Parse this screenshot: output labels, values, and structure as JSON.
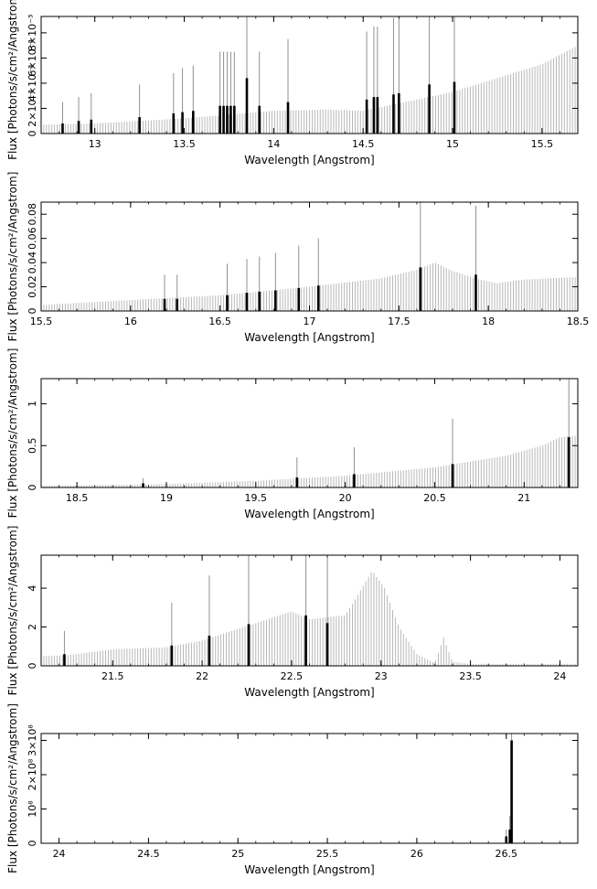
{
  "chart_data": [
    {
      "type": "bar",
      "xlabel": "Wavelength [Angstrom]",
      "ylabel": "Flux [Photons/s/cm²/Angstrom]",
      "xlim": [
        12.7,
        15.7
      ],
      "ylim": [
        0,
        0.0093
      ],
      "xticks": [
        13,
        13.5,
        14,
        14.5,
        15,
        15.5
      ],
      "xtick_labels": [
        "13",
        "13.5",
        "14",
        "14.5",
        "15",
        "15.5"
      ],
      "yticks": [
        0,
        0.002,
        0.004,
        0.006,
        0.008
      ],
      "ytick_labels": [
        "0",
        "2×10⁻³",
        "4×10⁻³",
        "6×10⁻³",
        "8×10⁻³"
      ],
      "continuum": [
        [
          12.7,
          0.0007
        ],
        [
          13.0,
          0.0008
        ],
        [
          13.5,
          0.0012
        ],
        [
          14.0,
          0.0018
        ],
        [
          14.3,
          0.0019
        ],
        [
          14.5,
          0.0018
        ],
        [
          15.0,
          0.0033
        ],
        [
          15.5,
          0.0055
        ],
        [
          15.7,
          0.007
        ]
      ],
      "lines": [
        {
          "x": 12.82,
          "y": 0.0008,
          "err": 0.0017
        },
        {
          "x": 12.91,
          "y": 0.001,
          "err": 0.0019
        },
        {
          "x": 12.98,
          "y": 0.0011,
          "err": 0.0021
        },
        {
          "x": 13.25,
          "y": 0.0013,
          "err": 0.0026
        },
        {
          "x": 13.44,
          "y": 0.0016,
          "err": 0.0032
        },
        {
          "x": 13.49,
          "y": 0.0017,
          "err": 0.0035
        },
        {
          "x": 13.55,
          "y": 0.0018,
          "err": 0.0036
        },
        {
          "x": 13.7,
          "y": 0.0022,
          "err": 0.0043
        },
        {
          "x": 13.72,
          "y": 0.0022,
          "err": 0.0043
        },
        {
          "x": 13.74,
          "y": 0.0022,
          "err": 0.0043
        },
        {
          "x": 13.76,
          "y": 0.0022,
          "err": 0.0043
        },
        {
          "x": 13.78,
          "y": 0.0022,
          "err": 0.0043
        },
        {
          "x": 13.85,
          "y": 0.0044,
          "err": 0.0073
        },
        {
          "x": 13.92,
          "y": 0.0022,
          "err": 0.0043
        },
        {
          "x": 14.08,
          "y": 0.0025,
          "err": 0.005
        },
        {
          "x": 14.52,
          "y": 0.0027,
          "err": 0.0054
        },
        {
          "x": 14.56,
          "y": 0.0029,
          "err": 0.0056
        },
        {
          "x": 14.58,
          "y": 0.0029,
          "err": 0.0056
        },
        {
          "x": 14.67,
          "y": 0.0031,
          "err": 0.0061
        },
        {
          "x": 14.7,
          "y": 0.0032,
          "err": 0.0062
        },
        {
          "x": 14.87,
          "y": 0.0039,
          "err": 0.0076
        },
        {
          "x": 15.01,
          "y": 0.0041,
          "err": 0.0083
        }
      ]
    },
    {
      "type": "bar",
      "xlabel": "Wavelength [Angstrom]",
      "ylabel": "Flux [Photons/s/cm²/Angstrom]",
      "xlim": [
        15.5,
        18.5
      ],
      "ylim": [
        0,
        0.09
      ],
      "xticks": [
        15.5,
        16,
        16.5,
        17,
        17.5,
        18,
        18.5
      ],
      "xtick_labels": [
        "15.5",
        "16",
        "16.5",
        "17",
        "17.5",
        "18",
        "18.5"
      ],
      "yticks": [
        0,
        0.02,
        0.04,
        0.06,
        0.08
      ],
      "ytick_labels": [
        "0",
        "0.02",
        "0.04",
        "0.06",
        "0.08"
      ],
      "continuum": [
        [
          15.5,
          0.005
        ],
        [
          16.0,
          0.009
        ],
        [
          16.5,
          0.013
        ],
        [
          17.0,
          0.02
        ],
        [
          17.4,
          0.027
        ],
        [
          17.6,
          0.034
        ],
        [
          17.7,
          0.04
        ],
        [
          17.8,
          0.033
        ],
        [
          17.95,
          0.026
        ],
        [
          18.05,
          0.023
        ],
        [
          18.2,
          0.026
        ],
        [
          18.5,
          0.028
        ]
      ],
      "lines": [
        {
          "x": 16.19,
          "y": 0.01,
          "err": 0.02
        },
        {
          "x": 16.26,
          "y": 0.01,
          "err": 0.02
        },
        {
          "x": 16.54,
          "y": 0.013,
          "err": 0.026
        },
        {
          "x": 16.65,
          "y": 0.015,
          "err": 0.028
        },
        {
          "x": 16.72,
          "y": 0.016,
          "err": 0.029
        },
        {
          "x": 16.81,
          "y": 0.017,
          "err": 0.031
        },
        {
          "x": 16.94,
          "y": 0.019,
          "err": 0.035
        },
        {
          "x": 17.05,
          "y": 0.021,
          "err": 0.039
        },
        {
          "x": 17.62,
          "y": 0.036,
          "err": 0.073
        },
        {
          "x": 17.93,
          "y": 0.03,
          "err": 0.057
        }
      ]
    },
    {
      "type": "bar",
      "xlabel": "Wavelength [Angstrom]",
      "ylabel": "Flux [Photons/s/cm²/Angstrom]",
      "xlim": [
        18.3,
        21.3
      ],
      "ylim": [
        0,
        1.3
      ],
      "xticks": [
        18.5,
        19,
        19.5,
        20,
        20.5,
        21
      ],
      "xtick_labels": [
        "18.5",
        "19",
        "19.5",
        "20",
        "20.5",
        "21"
      ],
      "yticks": [
        0,
        0.5,
        1
      ],
      "ytick_labels": [
        "0",
        "0.5",
        "1"
      ],
      "continuum": [
        [
          18.3,
          0.02
        ],
        [
          19.0,
          0.04
        ],
        [
          19.5,
          0.08
        ],
        [
          20.0,
          0.14
        ],
        [
          20.5,
          0.24
        ],
        [
          20.9,
          0.38
        ],
        [
          21.1,
          0.5
        ],
        [
          21.2,
          0.6
        ],
        [
          21.3,
          0.62
        ]
      ],
      "lines": [
        {
          "x": 18.87,
          "y": 0.05,
          "err": 0.06
        },
        {
          "x": 19.73,
          "y": 0.12,
          "err": 0.24
        },
        {
          "x": 20.05,
          "y": 0.16,
          "err": 0.32
        },
        {
          "x": 20.6,
          "y": 0.28,
          "err": 0.54
        },
        {
          "x": 21.25,
          "y": 0.6,
          "err": 1.2
        }
      ]
    },
    {
      "type": "bar",
      "xlabel": "Wavelength [Angstrom]",
      "ylabel": "Flux [Photons/s/cm²/Angstrom]",
      "xlim": [
        21.1,
        24.1
      ],
      "ylim": [
        0,
        5.7
      ],
      "xticks": [
        21.5,
        22,
        22.5,
        23,
        23.5,
        24
      ],
      "xtick_labels": [
        "21.5",
        "22",
        "22.5",
        "23",
        "23.5",
        "24"
      ],
      "yticks": [
        0,
        2,
        4
      ],
      "ytick_labels": [
        "0",
        "2",
        "4"
      ],
      "continuum": [
        [
          21.1,
          0.5
        ],
        [
          21.25,
          0.55
        ],
        [
          21.5,
          0.85
        ],
        [
          21.8,
          0.95
        ],
        [
          22.0,
          1.3
        ],
        [
          22.3,
          2.2
        ],
        [
          22.5,
          2.8
        ],
        [
          22.6,
          2.4
        ],
        [
          22.8,
          2.6
        ],
        [
          22.88,
          3.8
        ],
        [
          22.95,
          4.9
        ],
        [
          23.02,
          4.0
        ],
        [
          23.1,
          2.0
        ],
        [
          23.2,
          0.6
        ],
        [
          23.3,
          0.15
        ],
        [
          23.35,
          1.45
        ],
        [
          23.4,
          0.2
        ],
        [
          23.5,
          0.1
        ],
        [
          24.1,
          0.1
        ]
      ],
      "lines": [
        {
          "x": 21.23,
          "y": 0.6,
          "err": 1.2
        },
        {
          "x": 21.83,
          "y": 1.05,
          "err": 2.2
        },
        {
          "x": 22.04,
          "y": 1.55,
          "err": 3.1
        },
        {
          "x": 22.26,
          "y": 2.15,
          "err": 4.2
        },
        {
          "x": 22.58,
          "y": 2.6,
          "err": 5.2
        },
        {
          "x": 22.7,
          "y": 2.2,
          "err": 4.3
        }
      ]
    },
    {
      "type": "bar",
      "xlabel": "Wavelength [Angstrom]",
      "ylabel": "Flux [Photons/s/cm²/Angstrom]",
      "xlim": [
        23.9,
        26.9
      ],
      "ylim": [
        0,
        320000000
      ],
      "xticks": [
        24,
        24.5,
        25,
        25.5,
        26,
        26.5
      ],
      "xtick_labels": [
        "24",
        "24.5",
        "25",
        "25.5",
        "26",
        "26.5"
      ],
      "yticks": [
        0,
        100000000,
        200000000,
        300000000
      ],
      "ytick_labels": [
        "0",
        "10⁸",
        "2×10⁸",
        "3×10⁸"
      ],
      "continuum": [],
      "lines": [
        {
          "x": 26.5,
          "y": 20000000,
          "err": 20000000
        },
        {
          "x": 26.52,
          "y": 40000000,
          "err": 40000000
        },
        {
          "x": 26.53,
          "y": 300000000,
          "err": 300000000
        }
      ]
    }
  ]
}
